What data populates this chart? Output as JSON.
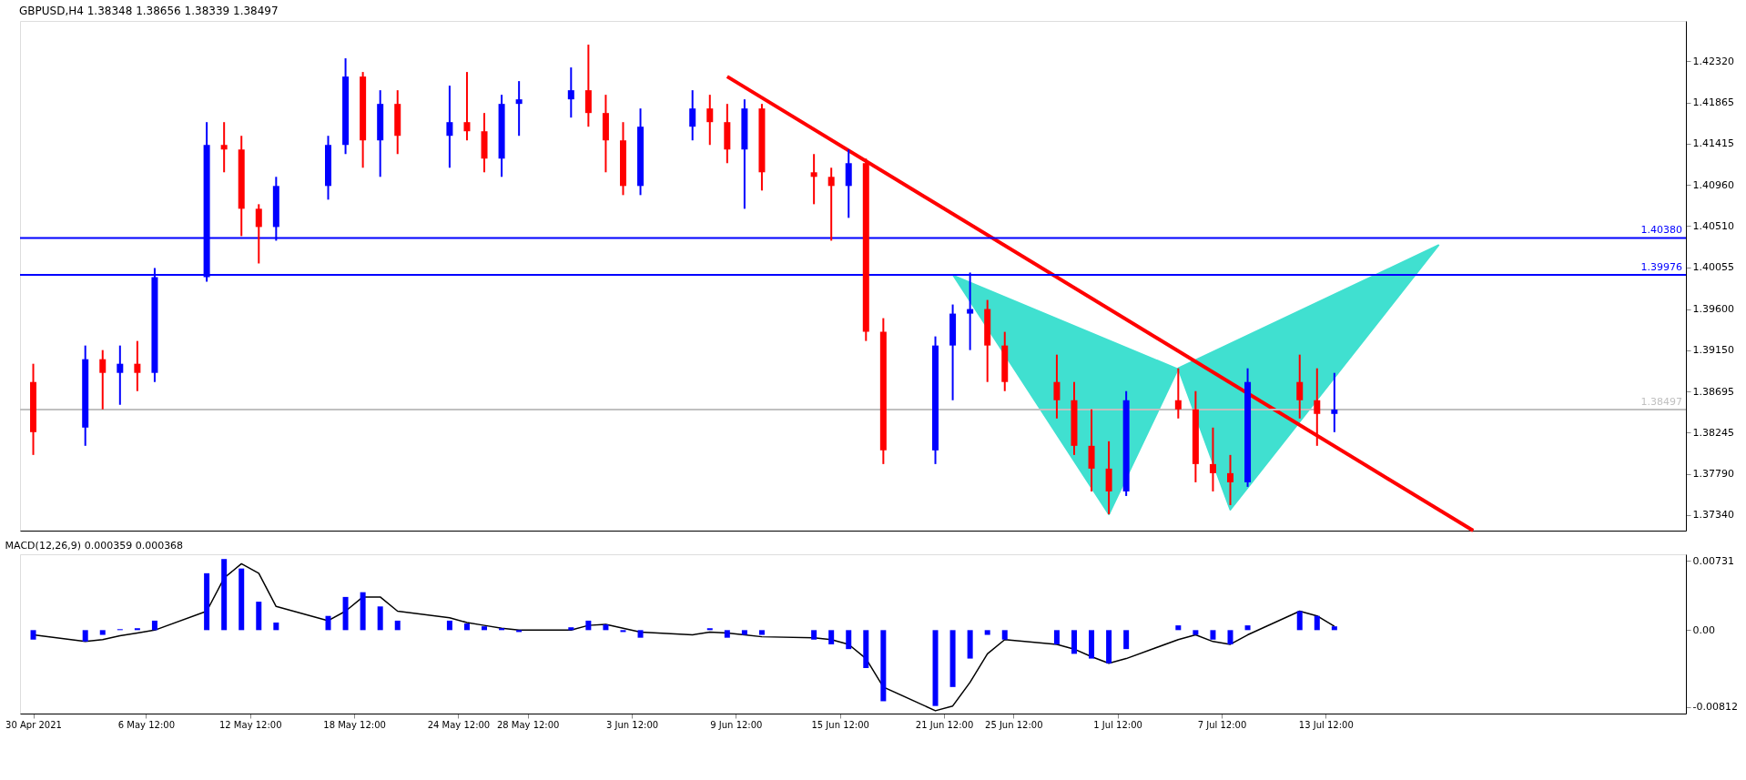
{
  "chart_data": [
    {
      "type": "candlestick",
      "title": "GBPUSD,H4  1.38348 1.38656 1.38339 1.38497",
      "x": [
        "2021-04-30",
        "2021-05-03",
        "2021-05-04",
        "2021-05-05",
        "2021-05-06",
        "2021-05-07",
        "2021-05-10",
        "2021-05-11",
        "2021-05-12",
        "2021-05-13",
        "2021-05-14",
        "2021-05-17",
        "2021-05-18",
        "2021-05-19",
        "2021-05-20",
        "2021-05-21",
        "2021-05-24",
        "2021-05-25",
        "2021-05-26",
        "2021-05-27",
        "2021-05-28",
        "2021-05-31",
        "2021-06-01",
        "2021-06-02",
        "2021-06-03",
        "2021-06-04",
        "2021-06-07",
        "2021-06-08",
        "2021-06-09",
        "2021-06-10",
        "2021-06-11",
        "2021-06-14",
        "2021-06-15",
        "2021-06-16",
        "2021-06-17",
        "2021-06-18",
        "2021-06-21",
        "2021-06-22",
        "2021-06-23",
        "2021-06-24",
        "2021-06-25",
        "2021-06-28",
        "2021-06-29",
        "2021-06-30",
        "2021-07-01",
        "2021-07-02",
        "2021-07-05",
        "2021-07-06",
        "2021-07-07",
        "2021-07-08",
        "2021-07-09",
        "2021-07-12",
        "2021-07-13",
        "2021-07-14"
      ],
      "ohlc": [
        [
          1.388,
          1.39,
          1.38,
          1.3825
        ],
        [
          1.383,
          1.392,
          1.381,
          1.3905
        ],
        [
          1.3905,
          1.3915,
          1.385,
          1.389
        ],
        [
          1.389,
          1.392,
          1.3855,
          1.39
        ],
        [
          1.39,
          1.3925,
          1.387,
          1.389
        ],
        [
          1.389,
          1.4005,
          1.388,
          1.3995
        ],
        [
          1.3995,
          1.4165,
          1.399,
          1.414
        ],
        [
          1.414,
          1.4165,
          1.411,
          1.4135
        ],
        [
          1.4135,
          1.415,
          1.404,
          1.407
        ],
        [
          1.407,
          1.4075,
          1.401,
          1.405
        ],
        [
          1.405,
          1.4105,
          1.4035,
          1.4095
        ],
        [
          1.4095,
          1.415,
          1.408,
          1.414
        ],
        [
          1.414,
          1.4235,
          1.413,
          1.4215
        ],
        [
          1.4215,
          1.422,
          1.4115,
          1.4145
        ],
        [
          1.4145,
          1.42,
          1.4105,
          1.4185
        ],
        [
          1.4185,
          1.42,
          1.413,
          1.415
        ],
        [
          1.415,
          1.4205,
          1.4115,
          1.4165
        ],
        [
          1.4165,
          1.422,
          1.4145,
          1.4155
        ],
        [
          1.4155,
          1.4175,
          1.411,
          1.4125
        ],
        [
          1.4125,
          1.4195,
          1.4105,
          1.4185
        ],
        [
          1.4185,
          1.421,
          1.415,
          1.419
        ],
        [
          1.419,
          1.4225,
          1.417,
          1.42
        ],
        [
          1.42,
          1.425,
          1.416,
          1.4175
        ],
        [
          1.4175,
          1.4195,
          1.411,
          1.4145
        ],
        [
          1.4145,
          1.4165,
          1.4085,
          1.4095
        ],
        [
          1.4095,
          1.418,
          1.4085,
          1.416
        ],
        [
          1.416,
          1.42,
          1.4145,
          1.418
        ],
        [
          1.418,
          1.4195,
          1.414,
          1.4165
        ],
        [
          1.4165,
          1.4185,
          1.412,
          1.4135
        ],
        [
          1.4135,
          1.419,
          1.407,
          1.418
        ],
        [
          1.418,
          1.4185,
          1.409,
          1.411
        ],
        [
          1.411,
          1.413,
          1.4075,
          1.4105
        ],
        [
          1.4105,
          1.4115,
          1.4035,
          1.4095
        ],
        [
          1.4095,
          1.4135,
          1.406,
          1.412
        ],
        [
          1.412,
          1.4125,
          1.3925,
          1.3935
        ],
        [
          1.3935,
          1.395,
          1.379,
          1.3805
        ],
        [
          1.3805,
          1.393,
          1.379,
          1.392
        ],
        [
          1.392,
          1.3965,
          1.386,
          1.3955
        ],
        [
          1.3955,
          1.4,
          1.3915,
          1.396
        ],
        [
          1.396,
          1.397,
          1.388,
          1.392
        ],
        [
          1.392,
          1.3935,
          1.387,
          1.388
        ],
        [
          1.388,
          1.391,
          1.384,
          1.386
        ],
        [
          1.386,
          1.388,
          1.38,
          1.381
        ],
        [
          1.381,
          1.385,
          1.376,
          1.3785
        ],
        [
          1.3785,
          1.3815,
          1.3735,
          1.376
        ],
        [
          1.376,
          1.387,
          1.3755,
          1.386
        ],
        [
          1.386,
          1.3895,
          1.384,
          1.385
        ],
        [
          1.385,
          1.387,
          1.377,
          1.379
        ],
        [
          1.379,
          1.383,
          1.376,
          1.378
        ],
        [
          1.378,
          1.38,
          1.3745,
          1.377
        ],
        [
          1.377,
          1.3895,
          1.3765,
          1.388
        ],
        [
          1.388,
          1.391,
          1.384,
          1.386
        ],
        [
          1.386,
          1.3895,
          1.381,
          1.3845
        ],
        [
          1.3845,
          1.389,
          1.3825,
          1.38497
        ]
      ],
      "colors": [
        "#ff0000",
        "#0000ff",
        "#ff0000",
        "#0000ff",
        "#ff0000",
        "#0000ff",
        "#0000ff",
        "#ff0000",
        "#ff0000",
        "#ff0000",
        "#0000ff",
        "#0000ff",
        "#0000ff",
        "#ff0000",
        "#0000ff",
        "#ff0000",
        "#0000ff",
        "#ff0000",
        "#ff0000",
        "#0000ff",
        "#0000ff",
        "#0000ff",
        "#ff0000",
        "#ff0000",
        "#ff0000",
        "#0000ff",
        "#0000ff",
        "#ff0000",
        "#ff0000",
        "#0000ff",
        "#ff0000",
        "#ff0000",
        "#ff0000",
        "#0000ff",
        "#ff0000",
        "#ff0000",
        "#0000ff",
        "#0000ff",
        "#0000ff",
        "#ff0000",
        "#ff0000",
        "#ff0000",
        "#ff0000",
        "#ff0000",
        "#ff0000",
        "#0000ff",
        "#ff0000",
        "#ff0000",
        "#ff0000",
        "#ff0000",
        "#0000ff",
        "#ff0000",
        "#ff0000",
        "#0000ff"
      ],
      "series": [
        {
          "type": "area",
          "color": "#40e0d0",
          "x": [
            "2021-06-22",
            "2021-07-01",
            "2021-07-05",
            "2021-07-08",
            "2021-07-20",
            "2021-07-05"
          ],
          "values": [
            1.3998,
            1.3735,
            1.3895,
            1.374,
            1.403,
            1.3895
          ]
        },
        {
          "type": "line",
          "color": "#ff0000",
          "x": [
            "2021-06-09",
            "2021-07-22"
          ],
          "values": [
            1.4215,
            1.3717
          ]
        }
      ],
      "ref_lines": [
        {
          "axis": "y",
          "value": 1.4038,
          "label": "1.40380",
          "color": "#0000ff"
        },
        {
          "axis": "y",
          "value": 1.39976,
          "label": "1.39976",
          "color": "#0000ff"
        },
        {
          "axis": "y",
          "value": 1.38497,
          "label": "1.38497",
          "color": "#c0c0c0"
        }
      ],
      "xlim": [
        "2021-04-29T12:00",
        "2021-08-03"
      ],
      "ylim": [
        1.3717,
        1.4276
      ],
      "yticks": [
        {
          "value": 1.4232,
          "label": "1.42320"
        },
        {
          "value": 1.41865,
          "label": "1.41865"
        },
        {
          "value": 1.41415,
          "label": "1.41415"
        },
        {
          "value": 1.4096,
          "label": "1.40960"
        },
        {
          "value": 1.4051,
          "label": "1.40510"
        },
        {
          "value": 1.40055,
          "label": "1.40055"
        },
        {
          "value": 1.396,
          "label": "1.39600"
        },
        {
          "value": 1.3915,
          "label": "1.39150"
        },
        {
          "value": 1.38695,
          "label": "1.38695"
        },
        {
          "value": 1.38245,
          "label": "1.38245"
        },
        {
          "value": 1.3779,
          "label": "1.37790"
        },
        {
          "value": 1.3734,
          "label": "1.37340"
        }
      ],
      "tick_labels": "y",
      "grid": false,
      "legend": false
    },
    {
      "type": "bar",
      "title": "MACD(12,26,9) 0.000359 0.000368",
      "x": [
        "2021-04-30",
        "2021-05-03",
        "2021-05-04",
        "2021-05-05",
        "2021-05-06",
        "2021-05-07",
        "2021-05-10",
        "2021-05-11",
        "2021-05-12",
        "2021-05-13",
        "2021-05-14",
        "2021-05-17",
        "2021-05-18",
        "2021-05-19",
        "2021-05-20",
        "2021-05-21",
        "2021-05-24",
        "2021-05-25",
        "2021-05-26",
        "2021-05-27",
        "2021-05-28",
        "2021-05-31",
        "2021-06-01",
        "2021-06-02",
        "2021-06-03",
        "2021-06-04",
        "2021-06-07",
        "2021-06-08",
        "2021-06-09",
        "2021-06-10",
        "2021-06-11",
        "2021-06-14",
        "2021-06-15",
        "2021-06-16",
        "2021-06-17",
        "2021-06-18",
        "2021-06-21",
        "2021-06-22",
        "2021-06-23",
        "2021-06-24",
        "2021-06-25",
        "2021-06-28",
        "2021-06-29",
        "2021-06-30",
        "2021-07-01",
        "2021-07-02",
        "2021-07-05",
        "2021-07-06",
        "2021-07-07",
        "2021-07-08",
        "2021-07-09",
        "2021-07-12",
        "2021-07-13",
        "2021-07-14"
      ],
      "series": [
        {
          "type": "bar",
          "color": "#0000ff",
          "values": [
            -0.001,
            -0.0012,
            -0.0005,
            0.0001,
            0.0002,
            0.001,
            0.006,
            0.0075,
            0.0065,
            0.003,
            0.0008,
            0.0015,
            0.0035,
            0.004,
            0.0025,
            0.001,
            0.001,
            0.0007,
            0.0004,
            0.0002,
            -0.0002,
            0.0003,
            0.001,
            0.0006,
            -0.0002,
            -0.0008,
            0.0,
            0.0002,
            -0.0008,
            -0.0005,
            -0.0005,
            -0.001,
            -0.0015,
            -0.002,
            -0.004,
            -0.0075,
            -0.008,
            -0.006,
            -0.003,
            -0.0005,
            -0.001,
            -0.0015,
            -0.0025,
            -0.003,
            -0.0035,
            -0.002,
            0.0005,
            -0.0005,
            -0.001,
            -0.0015,
            0.0005,
            0.002,
            0.0015,
            0.0004
          ]
        },
        {
          "type": "line",
          "color": "#000000",
          "values": [
            -0.0005,
            -0.0012,
            -0.001,
            -0.0006,
            -0.0003,
            0.0,
            0.002,
            0.0055,
            0.007,
            0.006,
            0.0025,
            0.001,
            0.002,
            0.0035,
            0.0035,
            0.002,
            0.0013,
            0.0008,
            0.0005,
            0.0002,
            0.0,
            0.0,
            0.0005,
            0.0006,
            0.0002,
            -0.0002,
            -0.0005,
            -0.0002,
            -0.0003,
            -0.0005,
            -0.0007,
            -0.0008,
            -0.001,
            -0.0015,
            -0.003,
            -0.006,
            -0.0085,
            -0.008,
            -0.0055,
            -0.0025,
            -0.001,
            -0.0015,
            -0.002,
            -0.0028,
            -0.0035,
            -0.003,
            -0.001,
            -0.0005,
            -0.0012,
            -0.0015,
            -0.0005,
            0.002,
            0.0015,
            0.0004
          ]
        }
      ],
      "xlim": [
        "2021-04-29T12:00",
        "2021-08-03"
      ],
      "xticks": [
        {
          "value": "2021-04-30",
          "label": "30 Apr 2021"
        },
        {
          "value": "2021-05-06T12:00",
          "label": "6 May 12:00"
        },
        {
          "value": "2021-05-12T12:00",
          "label": "12 May 12:00"
        },
        {
          "value": "2021-05-18T12:00",
          "label": "18 May 12:00"
        },
        {
          "value": "2021-05-24T12:00",
          "label": "24 May 12:00"
        },
        {
          "value": "2021-05-28T12:00",
          "label": "28 May 12:00"
        },
        {
          "value": "2021-06-03T12:00",
          "label": "3 Jun 12:00"
        },
        {
          "value": "2021-06-09T12:00",
          "label": "9 Jun 12:00"
        },
        {
          "value": "2021-06-15T12:00",
          "label": "15 Jun 12:00"
        },
        {
          "value": "2021-06-21T12:00",
          "label": "21 Jun 12:00"
        },
        {
          "value": "2021-06-25T12:00",
          "label": "25 Jun 12:00"
        },
        {
          "value": "2021-07-01T12:00",
          "label": "1 Jul 12:00"
        },
        {
          "value": "2021-07-07T12:00",
          "label": "7 Jul 12:00"
        },
        {
          "value": "2021-07-13T12:00",
          "label": "13 Jul 12:00"
        }
      ],
      "ylim": [
        -0.0088,
        0.008
      ],
      "yticks": [
        {
          "value": 0.00731,
          "label": "0.00731"
        },
        {
          "value": 0,
          "label": "0.00"
        },
        {
          "value": -0.00812,
          "label": "-0.00812"
        }
      ],
      "grid": false,
      "legend": false
    }
  ]
}
